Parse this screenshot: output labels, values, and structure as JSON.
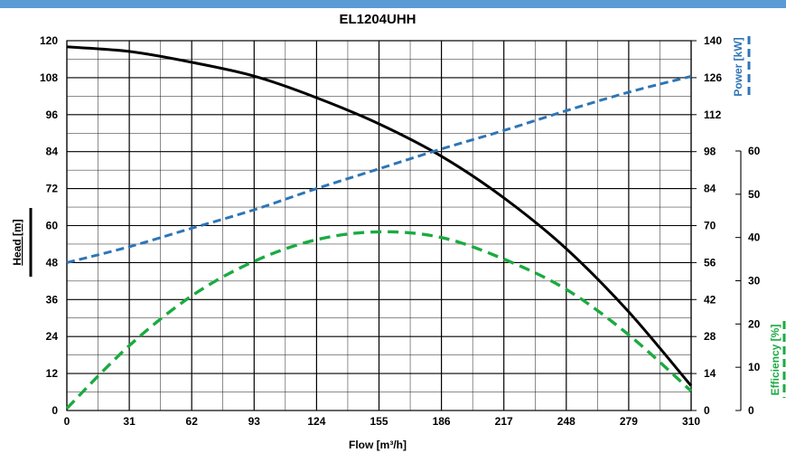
{
  "colors": {
    "top_bar": "#5b9bd5",
    "head": "#000000",
    "power": "#2e75b6",
    "efficiency": "#1aab40",
    "grid": "#000000"
  },
  "chart_data": {
    "type": "line",
    "title": "EL1204UHH",
    "xlabel": "Flow [m³/h]",
    "xlim": [
      0,
      310
    ],
    "x_ticks": [
      0,
      31,
      62,
      93,
      124,
      155,
      186,
      217,
      248,
      279,
      310
    ],
    "grid": true,
    "axes": {
      "head": {
        "label": "Head [m]",
        "side": "left",
        "lim": [
          0,
          120
        ],
        "ticks": [
          0,
          12,
          24,
          36,
          48,
          60,
          72,
          84,
          96,
          108,
          120
        ]
      },
      "power": {
        "label": "Power [kW]",
        "side": "right",
        "lim": [
          0,
          140
        ],
        "ticks": [
          0,
          14,
          28,
          42,
          56,
          70,
          84,
          98,
          112,
          126,
          140
        ]
      },
      "efficiency": {
        "label": "Efficiency [%]",
        "side": "right",
        "lim": [
          0,
          60
        ],
        "ticks": [
          0,
          10,
          20,
          30,
          40,
          50,
          60
        ]
      }
    },
    "series": [
      {
        "key": "head",
        "axis": "head",
        "style": "solid",
        "x": [
          0,
          31,
          62,
          93,
          124,
          155,
          186,
          217,
          248,
          279,
          310
        ],
        "y": [
          118,
          116.5,
          113,
          108.5,
          101.5,
          93,
          82.5,
          69,
          52.5,
          32,
          8
        ]
      },
      {
        "key": "power",
        "axis": "power",
        "style": "dashed",
        "x": [
          0,
          31,
          62,
          93,
          124,
          155,
          186,
          217,
          248,
          279,
          310
        ],
        "y": [
          56,
          62,
          69,
          76,
          84,
          91.5,
          99,
          106,
          113.5,
          120.5,
          126.5
        ]
      },
      {
        "key": "efficiency",
        "axis": "efficiency",
        "style": "dashed",
        "x": [
          0,
          31,
          62,
          93,
          124,
          155,
          186,
          217,
          248,
          279,
          310
        ],
        "y": [
          0.5,
          15,
          26.5,
          34.5,
          39.5,
          41.3,
          40,
          35,
          28,
          17.5,
          4.5
        ]
      }
    ]
  }
}
